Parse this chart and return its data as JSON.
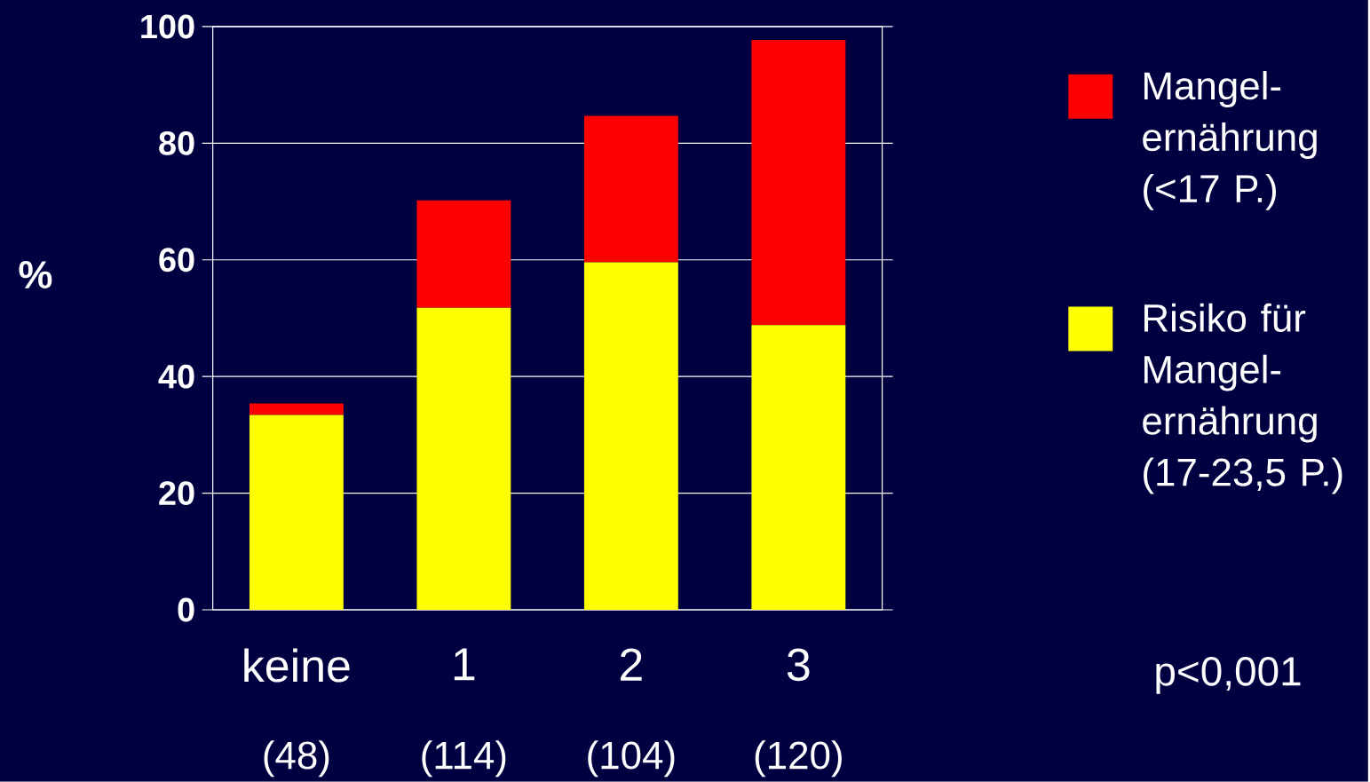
{
  "chart_data": {
    "type": "bar",
    "stacked": true,
    "ylabel": "%",
    "categories": [
      "keine",
      "1",
      "2",
      "3"
    ],
    "series": [
      {
        "name": "Risiko für Mangel-ernährung (17-23,5 P.)",
        "color": "#ffff00",
        "values": [
          33.4,
          51.8,
          59.6,
          48.8
        ]
      },
      {
        "name": "Mangel-ernährung (<17 P.)",
        "color": "#ff0000",
        "values": [
          2.0,
          18.4,
          25.1,
          48.9
        ]
      }
    ],
    "ylim": [
      0,
      100
    ],
    "yticks": [
      0,
      20,
      40,
      60,
      80,
      100
    ],
    "grid": "y",
    "legend": "right",
    "annotations": [
      "(48)",
      "(114)",
      "(104)",
      "(120)",
      "p<0,001"
    ]
  }
}
